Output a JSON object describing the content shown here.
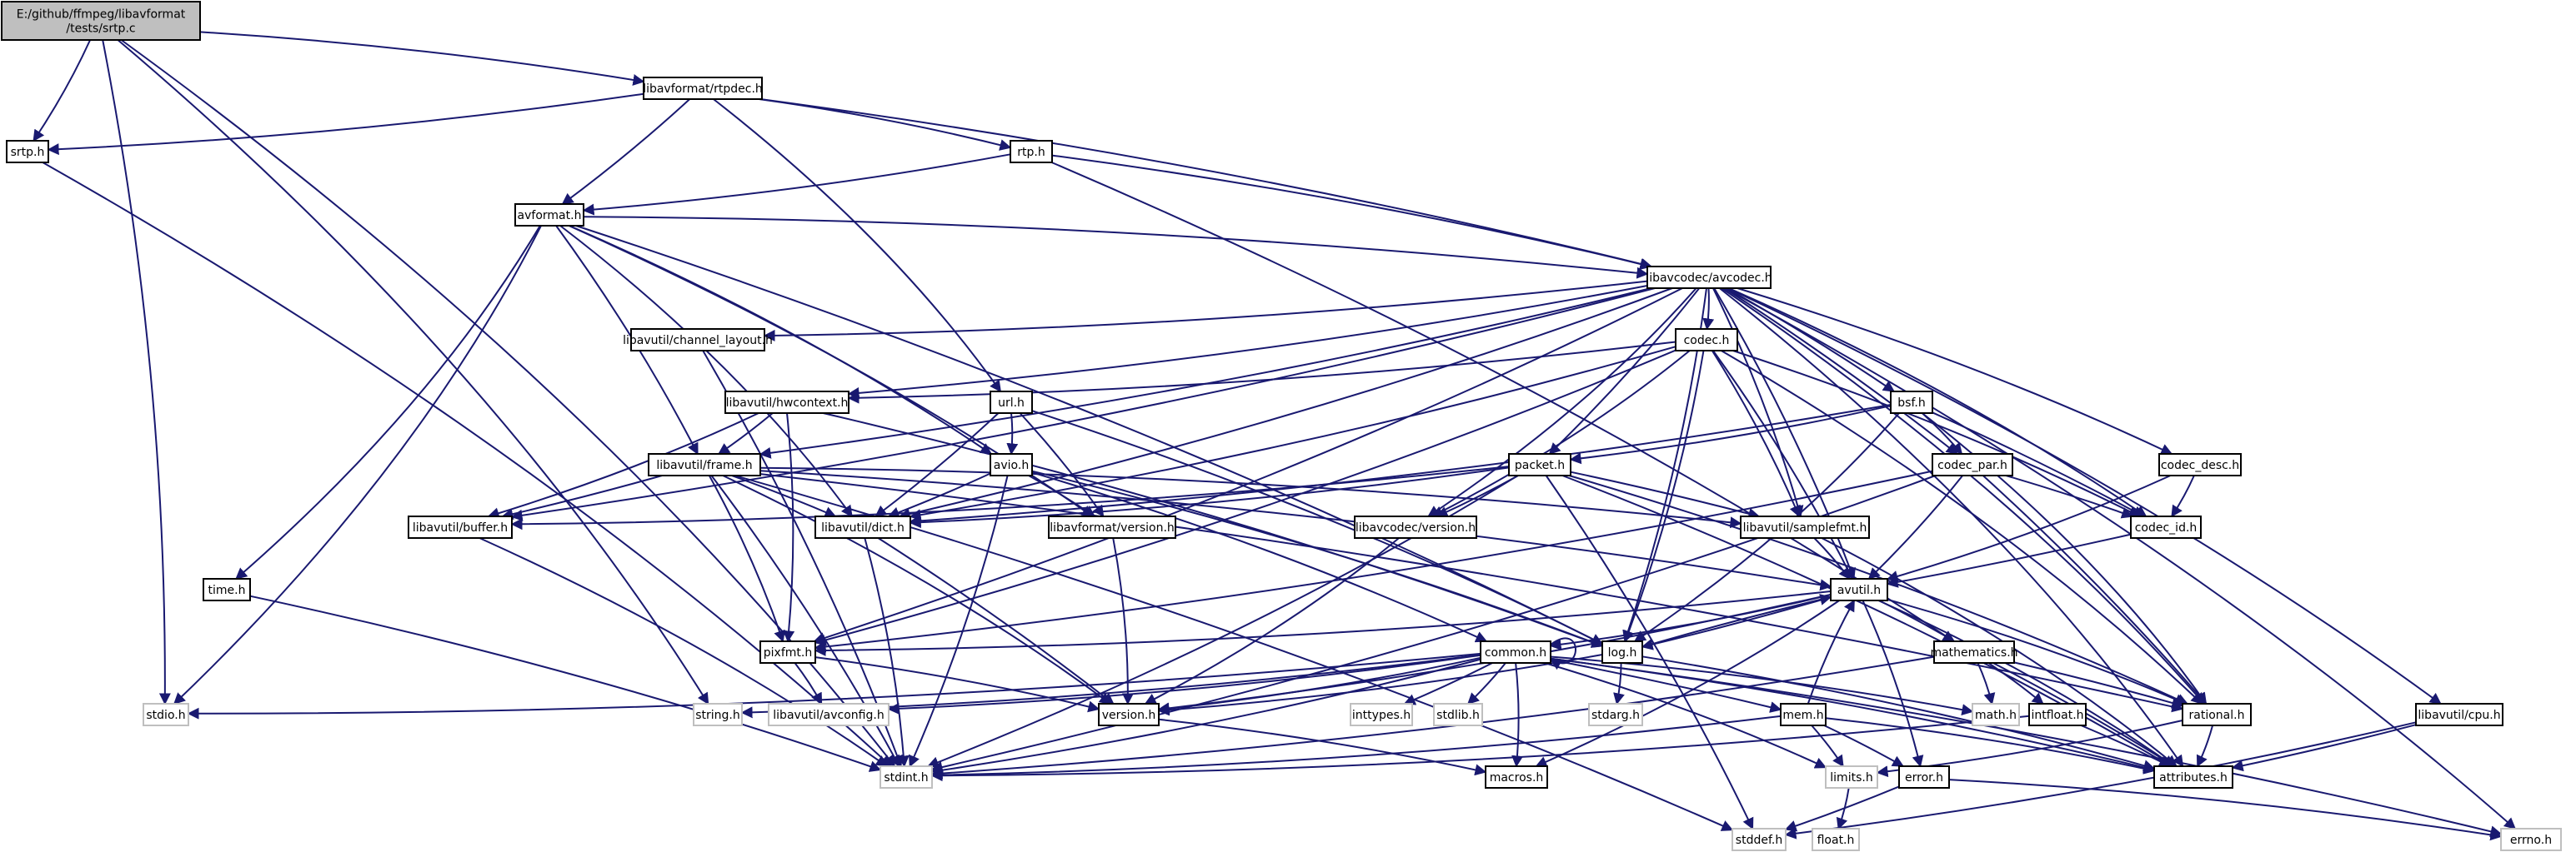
{
  "colors": {
    "edge": "#191970",
    "root_fill": "#bfbfbf",
    "node_border": "#000000",
    "external_border": "#bfbfbf"
  },
  "nodes": [
    {
      "id": "srtpc",
      "label": "E:/github/ffmpeg/libavformat\n/tests/srtp.c",
      "kind": "root"
    },
    {
      "id": "rtpdec",
      "label": "libavformat/rtpdec.h",
      "kind": "normal"
    },
    {
      "id": "srtph",
      "label": "srtp.h",
      "kind": "normal"
    },
    {
      "id": "rtph",
      "label": "rtp.h",
      "kind": "normal"
    },
    {
      "id": "avformat",
      "label": "avformat.h",
      "kind": "normal"
    },
    {
      "id": "avcodec",
      "label": "libavcodec/avcodec.h",
      "kind": "normal"
    },
    {
      "id": "chlayout",
      "label": "libavutil/channel_layout.h",
      "kind": "normal"
    },
    {
      "id": "codech",
      "label": "codec.h",
      "kind": "normal"
    },
    {
      "id": "hwctx",
      "label": "libavutil/hwcontext.h",
      "kind": "normal"
    },
    {
      "id": "urlh",
      "label": "url.h",
      "kind": "normal"
    },
    {
      "id": "bsfh",
      "label": "bsf.h",
      "kind": "normal"
    },
    {
      "id": "frame",
      "label": "libavutil/frame.h",
      "kind": "normal"
    },
    {
      "id": "avioh",
      "label": "avio.h",
      "kind": "normal"
    },
    {
      "id": "packet",
      "label": "packet.h",
      "kind": "normal"
    },
    {
      "id": "codecpar",
      "label": "codec_par.h",
      "kind": "normal"
    },
    {
      "id": "codecdesc",
      "label": "codec_desc.h",
      "kind": "normal"
    },
    {
      "id": "buffer",
      "label": "libavutil/buffer.h",
      "kind": "normal"
    },
    {
      "id": "dict",
      "label": "libavutil/dict.h",
      "kind": "normal"
    },
    {
      "id": "fmtver",
      "label": "libavformat/version.h",
      "kind": "normal"
    },
    {
      "id": "codecver",
      "label": "libavcodec/version.h",
      "kind": "normal"
    },
    {
      "id": "samplefmt",
      "label": "libavutil/samplefmt.h",
      "kind": "normal"
    },
    {
      "id": "codecid",
      "label": "codec_id.h",
      "kind": "normal"
    },
    {
      "id": "timeh",
      "label": "time.h",
      "kind": "normal"
    },
    {
      "id": "avutil",
      "label": "avutil.h",
      "kind": "normal"
    },
    {
      "id": "pixfmt",
      "label": "pixfmt.h",
      "kind": "normal"
    },
    {
      "id": "common",
      "label": "common.h",
      "kind": "normal"
    },
    {
      "id": "logh",
      "label": "log.h",
      "kind": "normal"
    },
    {
      "id": "mathematics",
      "label": "mathematics.h",
      "kind": "normal"
    },
    {
      "id": "stdio",
      "label": "stdio.h",
      "kind": "external"
    },
    {
      "id": "stringh",
      "label": "string.h",
      "kind": "external"
    },
    {
      "id": "avconfig",
      "label": "libavutil/avconfig.h",
      "kind": "external"
    },
    {
      "id": "version",
      "label": "version.h",
      "kind": "normal"
    },
    {
      "id": "inttypes",
      "label": "inttypes.h",
      "kind": "external"
    },
    {
      "id": "stdlib",
      "label": "stdlib.h",
      "kind": "external"
    },
    {
      "id": "stdarg",
      "label": "stdarg.h",
      "kind": "external"
    },
    {
      "id": "memh",
      "label": "mem.h",
      "kind": "normal"
    },
    {
      "id": "mathh",
      "label": "math.h",
      "kind": "external"
    },
    {
      "id": "intfloat",
      "label": "intfloat.h",
      "kind": "normal"
    },
    {
      "id": "rational",
      "label": "rational.h",
      "kind": "normal"
    },
    {
      "id": "cpuh",
      "label": "libavutil/cpu.h",
      "kind": "normal"
    },
    {
      "id": "stdint",
      "label": "stdint.h",
      "kind": "external"
    },
    {
      "id": "macros",
      "label": "macros.h",
      "kind": "normal"
    },
    {
      "id": "limits",
      "label": "limits.h",
      "kind": "external"
    },
    {
      "id": "errorh",
      "label": "error.h",
      "kind": "normal"
    },
    {
      "id": "attributes",
      "label": "attributes.h",
      "kind": "normal"
    },
    {
      "id": "stddef",
      "label": "stddef.h",
      "kind": "external"
    },
    {
      "id": "floath",
      "label": "float.h",
      "kind": "external"
    },
    {
      "id": "errno",
      "label": "errno.h",
      "kind": "external"
    }
  ],
  "edges": [
    [
      "srtpc",
      "rtpdec"
    ],
    [
      "srtpc",
      "srtph"
    ],
    [
      "srtpc",
      "stdio"
    ],
    [
      "srtpc",
      "stringh"
    ],
    [
      "srtpc",
      "stdint"
    ],
    [
      "rtpdec",
      "srtph"
    ],
    [
      "rtpdec",
      "rtph"
    ],
    [
      "rtpdec",
      "avformat"
    ],
    [
      "rtpdec",
      "avcodec"
    ],
    [
      "rtpdec",
      "urlh"
    ],
    [
      "srtph",
      "stdint"
    ],
    [
      "rtph",
      "avcodec"
    ],
    [
      "rtph",
      "avformat"
    ],
    [
      "rtph",
      "mathematics"
    ],
    [
      "avformat",
      "avcodec"
    ],
    [
      "avformat",
      "timeh"
    ],
    [
      "avformat",
      "stdio"
    ],
    [
      "avformat",
      "avioh"
    ],
    [
      "avformat",
      "dict"
    ],
    [
      "avformat",
      "fmtver"
    ],
    [
      "avformat",
      "logh"
    ],
    [
      "avformat",
      "frame"
    ],
    [
      "avcodec",
      "chlayout"
    ],
    [
      "avcodec",
      "codech"
    ],
    [
      "avcodec",
      "hwctx"
    ],
    [
      "avcodec",
      "bsfh"
    ],
    [
      "avcodec",
      "frame"
    ],
    [
      "avcodec",
      "packet"
    ],
    [
      "avcodec",
      "codecpar"
    ],
    [
      "avcodec",
      "codecdesc"
    ],
    [
      "avcodec",
      "buffer"
    ],
    [
      "avcodec",
      "dict"
    ],
    [
      "avcodec",
      "codecver"
    ],
    [
      "avcodec",
      "samplefmt"
    ],
    [
      "avcodec",
      "codecid"
    ],
    [
      "avcodec",
      "avutil"
    ],
    [
      "avcodec",
      "pixfmt"
    ],
    [
      "avcodec",
      "logh"
    ],
    [
      "avcodec",
      "rational"
    ],
    [
      "avcodec",
      "attributes"
    ],
    [
      "avcodec",
      "cpuh"
    ],
    [
      "avcodec",
      "errno"
    ],
    [
      "chlayout",
      "stdint"
    ],
    [
      "codech",
      "hwctx"
    ],
    [
      "codech",
      "codecid"
    ],
    [
      "codech",
      "samplefmt"
    ],
    [
      "codech",
      "avutil"
    ],
    [
      "codech",
      "logh"
    ],
    [
      "codech",
      "rational"
    ],
    [
      "codech",
      "pixfmt"
    ],
    [
      "codech",
      "dict"
    ],
    [
      "codech",
      "codecver"
    ],
    [
      "hwctx",
      "buffer"
    ],
    [
      "hwctx",
      "frame"
    ],
    [
      "hwctx",
      "logh"
    ],
    [
      "hwctx",
      "pixfmt"
    ],
    [
      "urlh",
      "avioh"
    ],
    [
      "urlh",
      "dict"
    ],
    [
      "urlh",
      "logh"
    ],
    [
      "urlh",
      "fmtver"
    ],
    [
      "bsfh",
      "packet"
    ],
    [
      "bsfh",
      "codecpar"
    ],
    [
      "bsfh",
      "codecid"
    ],
    [
      "bsfh",
      "logh"
    ],
    [
      "bsfh",
      "rational"
    ],
    [
      "bsfh",
      "dict"
    ],
    [
      "frame",
      "buffer"
    ],
    [
      "frame",
      "dict"
    ],
    [
      "frame",
      "pixfmt"
    ],
    [
      "frame",
      "samplefmt"
    ],
    [
      "frame",
      "rational"
    ],
    [
      "frame",
      "avutil"
    ],
    [
      "frame",
      "stdint"
    ],
    [
      "frame",
      "version"
    ],
    [
      "frame",
      "stddef"
    ],
    [
      "avioh",
      "dict"
    ],
    [
      "avioh",
      "fmtver"
    ],
    [
      "avioh",
      "logh"
    ],
    [
      "avioh",
      "common"
    ],
    [
      "avioh",
      "stdint"
    ],
    [
      "packet",
      "buffer"
    ],
    [
      "packet",
      "dict"
    ],
    [
      "packet",
      "codecver"
    ],
    [
      "packet",
      "rational"
    ],
    [
      "packet",
      "attributes"
    ],
    [
      "packet",
      "stddef"
    ],
    [
      "packet",
      "stdint"
    ],
    [
      "packet",
      "samplefmt"
    ],
    [
      "codecpar",
      "codecid"
    ],
    [
      "codecpar",
      "avutil"
    ],
    [
      "codecpar",
      "rational"
    ],
    [
      "codecpar",
      "pixfmt"
    ],
    [
      "codecpar",
      "stdint"
    ],
    [
      "codecdesc",
      "codecid"
    ],
    [
      "codecdesc",
      "avutil"
    ],
    [
      "buffer",
      "stdint"
    ],
    [
      "dict",
      "stdint"
    ],
    [
      "dict",
      "version"
    ],
    [
      "fmtver",
      "version"
    ],
    [
      "codecver",
      "version"
    ],
    [
      "samplefmt",
      "avutil"
    ],
    [
      "samplefmt",
      "attributes"
    ],
    [
      "codecid",
      "avutil"
    ],
    [
      "timeh",
      "stdint"
    ],
    [
      "avutil",
      "common"
    ],
    [
      "avutil",
      "logh"
    ],
    [
      "avutil",
      "pixfmt"
    ],
    [
      "avutil",
      "mathematics"
    ],
    [
      "avutil",
      "rational"
    ],
    [
      "avutil",
      "version"
    ],
    [
      "avutil",
      "errorh"
    ],
    [
      "avutil",
      "macros"
    ],
    [
      "avutil",
      "attributes"
    ],
    [
      "pixfmt",
      "avconfig"
    ],
    [
      "pixfmt",
      "version"
    ],
    [
      "common",
      "stdio"
    ],
    [
      "common",
      "stringh"
    ],
    [
      "common",
      "avconfig"
    ],
    [
      "common",
      "version"
    ],
    [
      "common",
      "inttypes"
    ],
    [
      "common",
      "stdlib"
    ],
    [
      "common",
      "mathh"
    ],
    [
      "common",
      "memh"
    ],
    [
      "common",
      "macros"
    ],
    [
      "common",
      "limits"
    ],
    [
      "common",
      "attributes"
    ],
    [
      "common",
      "stdint"
    ],
    [
      "common",
      "errno"
    ],
    [
      "common",
      "common"
    ],
    [
      "logh",
      "stdarg"
    ],
    [
      "logh",
      "version"
    ],
    [
      "logh",
      "avutil"
    ],
    [
      "logh",
      "attributes"
    ],
    [
      "mathematics",
      "mathh"
    ],
    [
      "mathematics",
      "intfloat"
    ],
    [
      "mathematics",
      "rational"
    ],
    [
      "mathematics",
      "attributes"
    ],
    [
      "mathematics",
      "stdint"
    ],
    [
      "memh",
      "limits"
    ],
    [
      "memh",
      "errorh"
    ],
    [
      "memh",
      "attributes"
    ],
    [
      "memh",
      "avutil"
    ],
    [
      "memh",
      "stdint"
    ],
    [
      "intfloat",
      "attributes"
    ],
    [
      "intfloat",
      "stdint"
    ],
    [
      "rational",
      "attributes"
    ],
    [
      "rational",
      "limits"
    ],
    [
      "cpuh",
      "attributes"
    ],
    [
      "cpuh",
      "stddef"
    ],
    [
      "limits",
      "floath"
    ],
    [
      "errorh",
      "errno"
    ],
    [
      "errorh",
      "stddef"
    ],
    [
      "version",
      "macros"
    ]
  ]
}
